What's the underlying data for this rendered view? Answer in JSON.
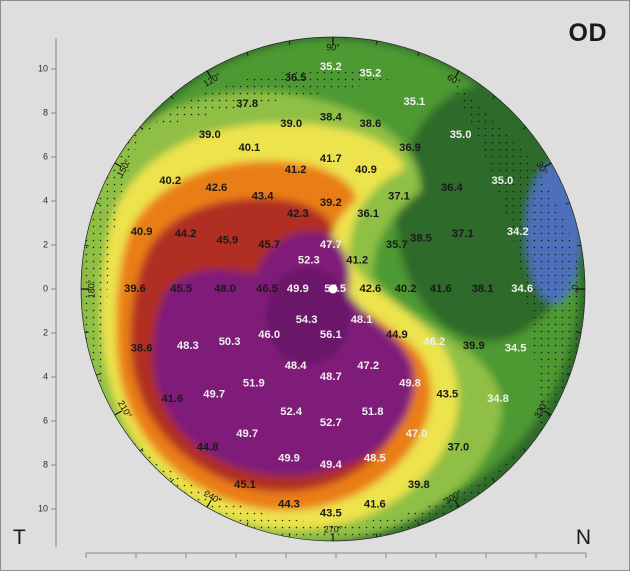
{
  "eye": "OD",
  "side_labels": {
    "left": "T",
    "right": "N"
  },
  "y_axis_ticks": [
    {
      "text": "10",
      "value": 10
    },
    {
      "text": "8",
      "value": 8
    },
    {
      "text": "6",
      "value": 6
    },
    {
      "text": "4",
      "value": 4
    },
    {
      "text": "2",
      "value": 2
    },
    {
      "text": "0",
      "value": 0
    },
    {
      "text": "2",
      "value": -2
    },
    {
      "text": "4",
      "value": -4
    },
    {
      "text": "6",
      "value": -6
    },
    {
      "text": "8",
      "value": -8
    },
    {
      "text": "10",
      "value": -10
    }
  ],
  "degree_labels": [
    {
      "text": "0°",
      "angle": 0
    },
    {
      "text": "30°",
      "angle": 30
    },
    {
      "text": "60°",
      "angle": 60
    },
    {
      "text": "90°",
      "angle": 90
    },
    {
      "text": "120°",
      "angle": 120
    },
    {
      "text": "150°",
      "angle": 150
    },
    {
      "text": "180°",
      "angle": 180
    },
    {
      "text": "210°",
      "angle": 210
    },
    {
      "text": "240°",
      "angle": 240
    },
    {
      "text": "270°",
      "angle": 270
    },
    {
      "text": "300°",
      "angle": 300
    },
    {
      "text": "330°",
      "angle": 330
    }
  ],
  "values": [
    {
      "text": "36.5",
      "x": -1.7,
      "y": 9.6
    },
    {
      "text": "35.2",
      "x": -0.1,
      "y": 10.1,
      "light": true
    },
    {
      "text": "35.2",
      "x": 1.7,
      "y": 9.8,
      "light": true
    },
    {
      "text": "37.8",
      "x": -3.9,
      "y": 8.4
    },
    {
      "text": "35.1",
      "x": 3.7,
      "y": 8.5,
      "light": true
    },
    {
      "text": "39.0",
      "x": -1.9,
      "y": 7.5
    },
    {
      "text": "38.4",
      "x": -0.1,
      "y": 7.8
    },
    {
      "text": "38.6",
      "x": 1.7,
      "y": 7.5
    },
    {
      "text": "39.0",
      "x": -5.6,
      "y": 7.0
    },
    {
      "text": "35.0",
      "x": 5.8,
      "y": 7.0,
      "light": true
    },
    {
      "text": "40.1",
      "x": -3.8,
      "y": 6.4
    },
    {
      "text": "36.9",
      "x": 3.5,
      "y": 6.4
    },
    {
      "text": "41.7",
      "x": -0.1,
      "y": 5.9
    },
    {
      "text": "41.2",
      "x": -1.7,
      "y": 5.4
    },
    {
      "text": "40.9",
      "x": 1.5,
      "y": 5.4
    },
    {
      "text": "40.2",
      "x": -7.4,
      "y": 4.9
    },
    {
      "text": "35.0",
      "x": 7.7,
      "y": 4.9,
      "light": true
    },
    {
      "text": "42.6",
      "x": -5.3,
      "y": 4.6
    },
    {
      "text": "36.4",
      "x": 5.4,
      "y": 4.6
    },
    {
      "text": "43.4",
      "x": -3.2,
      "y": 4.2
    },
    {
      "text": "37.1",
      "x": 3.0,
      "y": 4.2
    },
    {
      "text": "39.2",
      "x": -0.1,
      "y": 3.9
    },
    {
      "text": "42.3",
      "x": -1.6,
      "y": 3.4
    },
    {
      "text": "36.1",
      "x": 1.6,
      "y": 3.4
    },
    {
      "text": "40.9",
      "x": -8.7,
      "y": 2.6
    },
    {
      "text": "44.2",
      "x": -6.7,
      "y": 2.5
    },
    {
      "text": "34.2",
      "x": 8.4,
      "y": 2.6,
      "light": true
    },
    {
      "text": "45.9",
      "x": -4.8,
      "y": 2.2
    },
    {
      "text": "38.5",
      "x": 4.0,
      "y": 2.3
    },
    {
      "text": "37.1",
      "x": 5.9,
      "y": 2.5
    },
    {
      "text": "45.7",
      "x": -2.9,
      "y": 2.0
    },
    {
      "text": "47.7",
      "x": -0.1,
      "y": 2.0,
      "light": true
    },
    {
      "text": "35.7",
      "x": 2.9,
      "y": 2.0
    },
    {
      "text": "52.3",
      "x": -1.1,
      "y": 1.3,
      "light": true
    },
    {
      "text": "41.2",
      "x": 1.1,
      "y": 1.3
    },
    {
      "text": "39.6",
      "x": -9.0,
      "y": 0
    },
    {
      "text": "45.5",
      "x": -6.9,
      "y": 0
    },
    {
      "text": "48.0",
      "x": -4.9,
      "y": 0
    },
    {
      "text": "46.5",
      "x": -3.0,
      "y": 0
    },
    {
      "text": "49.9",
      "x": -1.6,
      "y": 0,
      "light": true
    },
    {
      "text": "57.5",
      "x": 0.1,
      "y": 0,
      "light": true
    },
    {
      "text": "42.6",
      "x": 1.7,
      "y": 0
    },
    {
      "text": "40.2",
      "x": 3.3,
      "y": 0
    },
    {
      "text": "41.6",
      "x": 4.9,
      "y": 0
    },
    {
      "text": "38.1",
      "x": 6.8,
      "y": 0
    },
    {
      "text": "34.6",
      "x": 8.6,
      "y": 0,
      "light": true
    },
    {
      "text": "54.3",
      "x": -1.2,
      "y": -1.4,
      "light": true
    },
    {
      "text": "48.1",
      "x": 1.3,
      "y": -1.4,
      "light": true
    },
    {
      "text": "46.0",
      "x": -2.9,
      "y": -2.1,
      "light": true
    },
    {
      "text": "56.1",
      "x": -0.1,
      "y": -2.1,
      "light": true
    },
    {
      "text": "44.9",
      "x": 2.9,
      "y": -2.1
    },
    {
      "text": "50.3",
      "x": -4.7,
      "y": -2.4,
      "light": true
    },
    {
      "text": "46.2",
      "x": 4.6,
      "y": -2.4,
      "light": true
    },
    {
      "text": "48.3",
      "x": -6.6,
      "y": -2.6,
      "light": true
    },
    {
      "text": "39.9",
      "x": 6.4,
      "y": -2.6
    },
    {
      "text": "38.6",
      "x": -8.7,
      "y": -2.7
    },
    {
      "text": "34.5",
      "x": 8.3,
      "y": -2.7,
      "light": true
    },
    {
      "text": "48.4",
      "x": -1.7,
      "y": -3.5,
      "light": true
    },
    {
      "text": "47.2",
      "x": 1.6,
      "y": -3.5,
      "light": true
    },
    {
      "text": "48.7",
      "x": -0.1,
      "y": -4.0,
      "light": true
    },
    {
      "text": "51.9",
      "x": -3.6,
      "y": -4.3,
      "light": true
    },
    {
      "text": "49.8",
      "x": 3.5,
      "y": -4.3,
      "light": true
    },
    {
      "text": "49.7",
      "x": -5.4,
      "y": -4.8,
      "light": true
    },
    {
      "text": "43.5",
      "x": 5.2,
      "y": -4.8
    },
    {
      "text": "41.6",
      "x": -7.3,
      "y": -5.0
    },
    {
      "text": "34.8",
      "x": 7.5,
      "y": -5.0,
      "light": true
    },
    {
      "text": "52.4",
      "x": -1.9,
      "y": -5.6,
      "light": true
    },
    {
      "text": "51.8",
      "x": 1.8,
      "y": -5.6,
      "light": true
    },
    {
      "text": "52.7",
      "x": -0.1,
      "y": -6.1,
      "light": true
    },
    {
      "text": "49.7",
      "x": -3.9,
      "y": -6.6,
      "light": true
    },
    {
      "text": "47.0",
      "x": 3.8,
      "y": -6.6,
      "light": true
    },
    {
      "text": "44.8",
      "x": -5.7,
      "y": -7.2
    },
    {
      "text": "37.0",
      "x": 5.7,
      "y": -7.2
    },
    {
      "text": "49.9",
      "x": -2.0,
      "y": -7.7,
      "light": true
    },
    {
      "text": "48.5",
      "x": 1.9,
      "y": -7.7,
      "light": true
    },
    {
      "text": "49.4",
      "x": -0.1,
      "y": -8.0,
      "light": true
    },
    {
      "text": "45.1",
      "x": -4.0,
      "y": -8.9
    },
    {
      "text": "39.8",
      "x": 3.9,
      "y": -8.9
    },
    {
      "text": "44.3",
      "x": -2.0,
      "y": -9.8
    },
    {
      "text": "41.6",
      "x": 1.9,
      "y": -9.8
    },
    {
      "text": "43.5",
      "x": -0.1,
      "y": -10.2
    }
  ],
  "colors": {
    "background": "#dedede",
    "purple": "#7f1f79",
    "red": "#b12f22",
    "orange": "#ea7e14",
    "yellow": "#ece34d",
    "light_green": "#8fbf44",
    "green": "#4e9933",
    "dark_green": "#2f6a2a",
    "blue": "#4e6fba"
  },
  "icons": {
    "apex_marker": "apex-marker-icon"
  }
}
